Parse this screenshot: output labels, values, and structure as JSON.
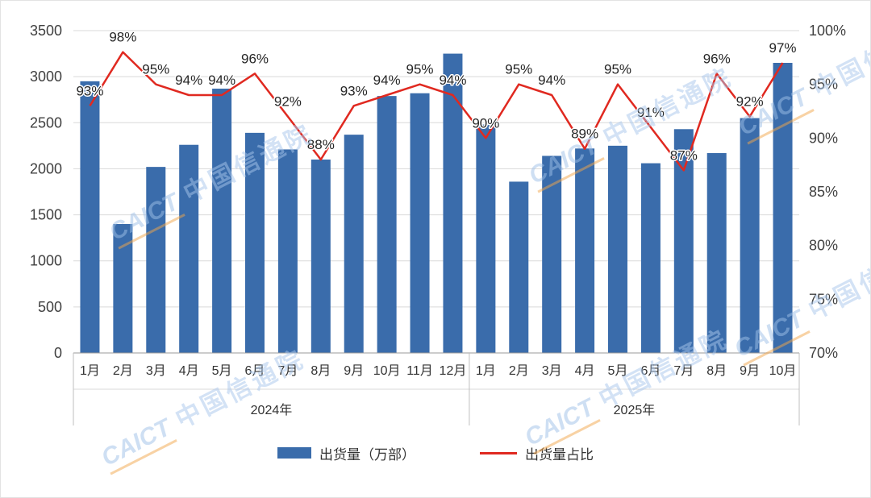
{
  "chart_data": {
    "type": "combo",
    "categories": [
      "1月",
      "2月",
      "3月",
      "4月",
      "5月",
      "6月",
      "7月",
      "8月",
      "9月",
      "10月",
      "11月",
      "12月",
      "1月",
      "2月",
      "3月",
      "4月",
      "5月",
      "6月",
      "7月",
      "8月",
      "9月",
      "10月"
    ],
    "year_groups": [
      {
        "label": "2024年",
        "count": 12
      },
      {
        "label": "2025年",
        "count": 10
      }
    ],
    "series": [
      {
        "name": "出货量（万部）",
        "type": "bar",
        "color": "#3a6cab",
        "values": [
          2950,
          1400,
          2020,
          2260,
          2870,
          2390,
          2210,
          2100,
          2370,
          2790,
          2820,
          3250,
          2480,
          1860,
          2140,
          2220,
          2250,
          2060,
          2430,
          2170,
          2550,
          3150
        ]
      },
      {
        "name": "出货量占比",
        "type": "line",
        "color": "#e02920",
        "values": [
          93,
          98,
          95,
          94,
          94,
          96,
          92,
          88,
          93,
          94,
          95,
          94,
          90,
          95,
          94,
          89,
          95,
          91,
          87,
          96,
          92,
          97
        ],
        "labels": [
          "93%",
          "98%",
          "95%",
          "94%",
          "94%",
          "96%",
          "92%",
          "88%",
          "93%",
          "94%",
          "95%",
          "94%",
          "90%",
          "95%",
          "94%",
          "89%",
          "95%",
          "91%",
          "87%",
          "96%",
          "92%",
          "97%"
        ]
      }
    ],
    "left_axis": {
      "min": 0,
      "max": 3500,
      "step": 500,
      "ticks": [
        "0",
        "500",
        "1000",
        "1500",
        "2000",
        "2500",
        "3000",
        "3500"
      ]
    },
    "right_axis": {
      "min": 70,
      "max": 100,
      "step": 5,
      "ticks": [
        "70%",
        "75%",
        "80%",
        "85%",
        "90%",
        "95%",
        "100%"
      ]
    },
    "grid": "horizontal",
    "legend_position": "bottom"
  },
  "watermark": {
    "brand": "CAICT",
    "name": "中国信通院"
  },
  "colors": {
    "bar": "#3a6cab",
    "line": "#e02920",
    "gridline": "#d9d9d9",
    "axis_text": "#404040"
  }
}
